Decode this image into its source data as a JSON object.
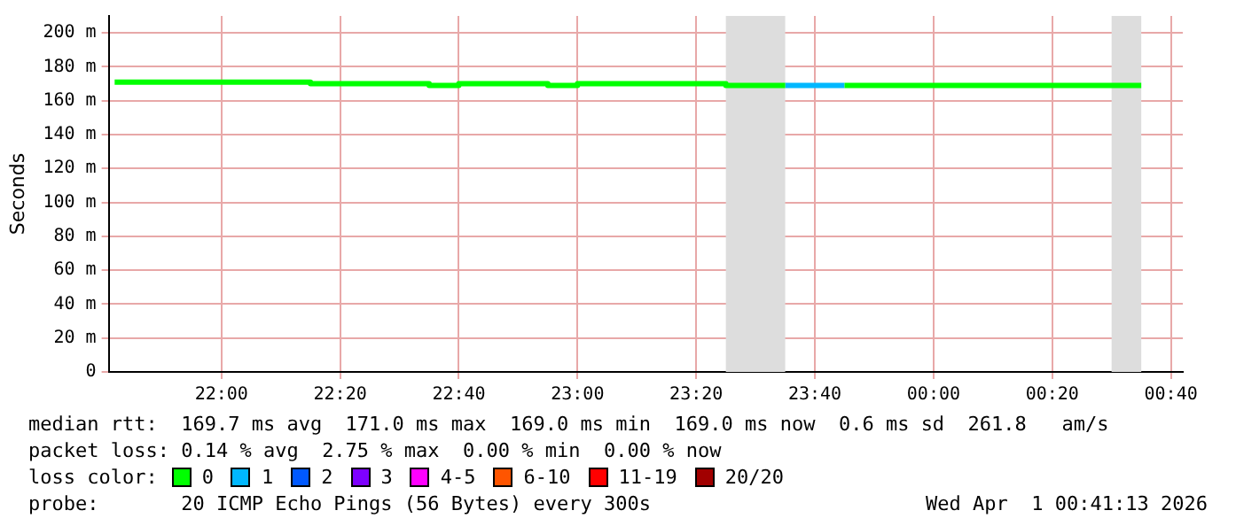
{
  "chart_data": {
    "type": "step",
    "ylabel": "Seconds",
    "xlim": [
      "2026-03-31T21:41",
      "2026-04-01T00:42"
    ],
    "xticks": [
      {
        "value": "2026-03-31T22:00",
        "label": "22:00"
      },
      {
        "value": "2026-03-31T22:20",
        "label": "22:20"
      },
      {
        "value": "2026-03-31T22:40",
        "label": "22:40"
      },
      {
        "value": "2026-03-31T23:00",
        "label": "23:00"
      },
      {
        "value": "2026-03-31T23:20",
        "label": "23:20"
      },
      {
        "value": "2026-03-31T23:40",
        "label": "23:40"
      },
      {
        "value": "2026-04-01T00:00",
        "label": "00:00"
      },
      {
        "value": "2026-04-01T00:20",
        "label": "00:20"
      },
      {
        "value": "2026-04-01T00:40",
        "label": "00:40"
      }
    ],
    "ylim": [
      0,
      210
    ],
    "yticks": [
      0,
      {
        "value": 20,
        "label": "20 m"
      },
      {
        "value": 40,
        "label": "40 m"
      },
      {
        "value": 60,
        "label": "60 m"
      },
      {
        "value": 80,
        "label": "80 m"
      },
      {
        "value": 100,
        "label": "100 m"
      },
      {
        "value": 120,
        "label": "120 m"
      },
      {
        "value": 140,
        "label": "140 m"
      },
      {
        "value": 160,
        "label": "160 m"
      },
      {
        "value": 180,
        "label": "180 m"
      },
      {
        "value": 200,
        "label": "200 m"
      }
    ],
    "grid": true,
    "legend": "bottom",
    "legend_title": "loss color:",
    "series": [
      {
        "name": "0",
        "color": "#00ff00",
        "x": [
          "2026-03-31T21:42",
          "2026-03-31T21:45",
          "2026-03-31T21:50",
          "2026-03-31T21:55",
          "2026-03-31T22:00",
          "2026-03-31T22:05",
          "2026-03-31T22:10",
          "2026-03-31T22:15",
          "2026-03-31T22:20",
          "2026-03-31T22:25",
          "2026-03-31T22:30",
          "2026-03-31T22:35",
          "2026-03-31T22:40",
          "2026-03-31T22:45",
          "2026-03-31T22:50",
          "2026-03-31T22:55",
          "2026-03-31T23:00",
          "2026-03-31T23:05",
          "2026-03-31T23:10",
          "2026-03-31T23:15",
          "2026-03-31T23:20",
          "2026-03-31T23:25",
          "2026-03-31T23:30",
          "2026-03-31T23:35",
          "2026-03-31T23:40",
          "2026-03-31T23:45",
          "2026-03-31T23:50",
          "2026-03-31T23:55",
          "2026-04-01T00:00",
          "2026-04-01T00:05",
          "2026-04-01T00:10",
          "2026-04-01T00:15",
          "2026-04-01T00:20",
          "2026-04-01T00:25",
          "2026-04-01T00:30",
          "2026-04-01T00:35"
        ],
        "values": [
          171,
          171,
          171,
          171,
          171,
          171,
          171,
          171,
          170,
          170,
          170,
          170,
          169,
          170,
          170,
          170,
          169,
          170,
          170,
          170,
          170,
          170,
          169,
          169,
          null,
          169,
          169,
          169,
          169,
          169,
          169,
          169,
          169,
          169,
          169,
          169
        ]
      },
      {
        "name": "1",
        "color": "#00b8ff",
        "x": [
          "2026-03-31T23:35",
          "2026-03-31T23:40",
          "2026-03-31T23:45"
        ],
        "values": [
          169,
          169,
          169
        ]
      },
      {
        "name": "2",
        "color": "#0059ff"
      },
      {
        "name": "3",
        "color": "#7e00ff"
      },
      {
        "name": "4-5",
        "color": "#ff00ff"
      },
      {
        "name": "6-10",
        "color": "#ff5500"
      },
      {
        "name": "11-19",
        "color": "#ff0000"
      },
      {
        "name": "20/20",
        "color": "#a10000"
      }
    ],
    "bands": [
      {
        "axis": "x",
        "from": "2026-03-31T23:25",
        "to": "2026-03-31T23:35",
        "color": "#dddddd"
      },
      {
        "axis": "x",
        "from": "2026-04-01T00:30",
        "to": "2026-04-01T00:35",
        "color": "#dddddd"
      }
    ],
    "annotations": [
      "median rtt:  169.7 ms avg  171.0 ms max  169.0 ms min  169.0 ms now  0.6 ms sd  261.8   am/s",
      "packet loss: 0.14 % avg  2.75 % max  0.00 % min  0.00 % now",
      "probe:       20 ICMP Echo Pings (56 Bytes) every 300s",
      "Wed Apr  1 00:41:13 2026"
    ]
  }
}
